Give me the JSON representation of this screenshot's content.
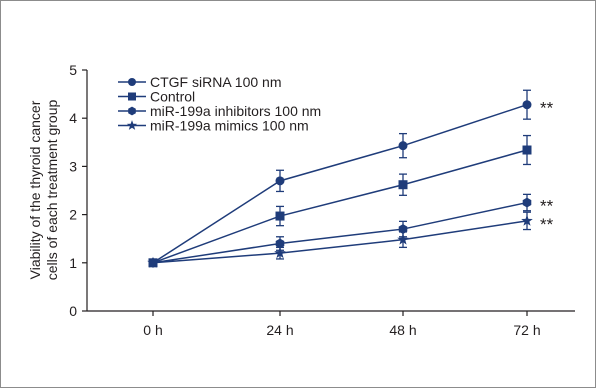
{
  "chart_data": {
    "type": "line",
    "categories": [
      "0 h",
      "24 h",
      "48 h",
      "72 h"
    ],
    "ylabel_lines": [
      "Viability of the thyroid cancer",
      "cells of each treatment group"
    ],
    "xlabel": "",
    "ylim": [
      0,
      5
    ],
    "yticks": [
      "0",
      "1",
      "2",
      "3",
      "4",
      "5"
    ],
    "grid": false,
    "legend_position": "top-left",
    "line_color": "#1f3c7a",
    "series": [
      {
        "name": "CTGF siRNA 100 nm",
        "marker": "circle",
        "values": [
          1.0,
          2.7,
          3.43,
          4.28
        ],
        "errors": [
          0.04,
          0.22,
          0.25,
          0.3
        ],
        "significance": "**"
      },
      {
        "name": "Control",
        "marker": "square",
        "values": [
          1.0,
          1.97,
          2.62,
          3.34
        ],
        "errors": [
          0.04,
          0.2,
          0.22,
          0.3
        ],
        "significance": ""
      },
      {
        "name": "miR-199a inhibitors 100 nm",
        "marker": "hexagon",
        "values": [
          1.0,
          1.4,
          1.7,
          2.25
        ],
        "errors": [
          0.04,
          0.14,
          0.16,
          0.17
        ],
        "significance": "**"
      },
      {
        "name": "miR-199a mimics 100 nm",
        "marker": "star",
        "values": [
          1.0,
          1.2,
          1.48,
          1.87
        ],
        "errors": [
          0.04,
          0.12,
          0.16,
          0.18
        ],
        "significance": "**"
      }
    ]
  }
}
